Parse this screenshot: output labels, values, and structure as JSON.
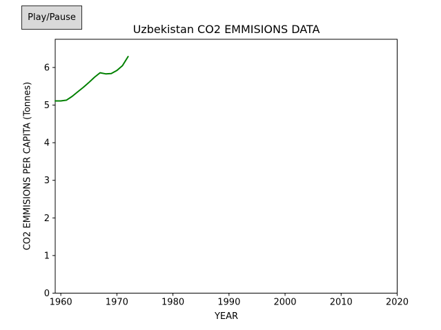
{
  "controls": {
    "play_pause_label": "Play/Pause"
  },
  "colors": {
    "background": "#ffffff",
    "button_bg": "#d9d9d9",
    "button_border": "#2b2b2b",
    "axis": "#000000",
    "text": "#000000",
    "line": "#008000"
  },
  "chart_data": {
    "type": "line",
    "title": "Uzbekistan CO2 EMMISIONS DATA",
    "xlabel": "YEAR",
    "ylabel": "CO2 EMMISIONS PER CAPITA (Tonnes)",
    "x": [
      1959,
      1960,
      1961,
      1962,
      1963,
      1964,
      1965,
      1966,
      1967,
      1968,
      1969,
      1970,
      1971,
      1972
    ],
    "y": [
      5.11,
      5.11,
      5.13,
      5.23,
      5.35,
      5.47,
      5.6,
      5.74,
      5.86,
      5.83,
      5.84,
      5.92,
      6.05,
      6.29
    ],
    "xlim": [
      1959,
      2020
    ],
    "ylim": [
      0,
      6.75
    ],
    "xticks": [
      1960,
      1970,
      1980,
      1990,
      2000,
      2010,
      2020
    ],
    "yticks": [
      0,
      1,
      2,
      3,
      4,
      5,
      6
    ],
    "grid": false,
    "legend": null,
    "line_color": "#008000",
    "line_width": 2
  }
}
